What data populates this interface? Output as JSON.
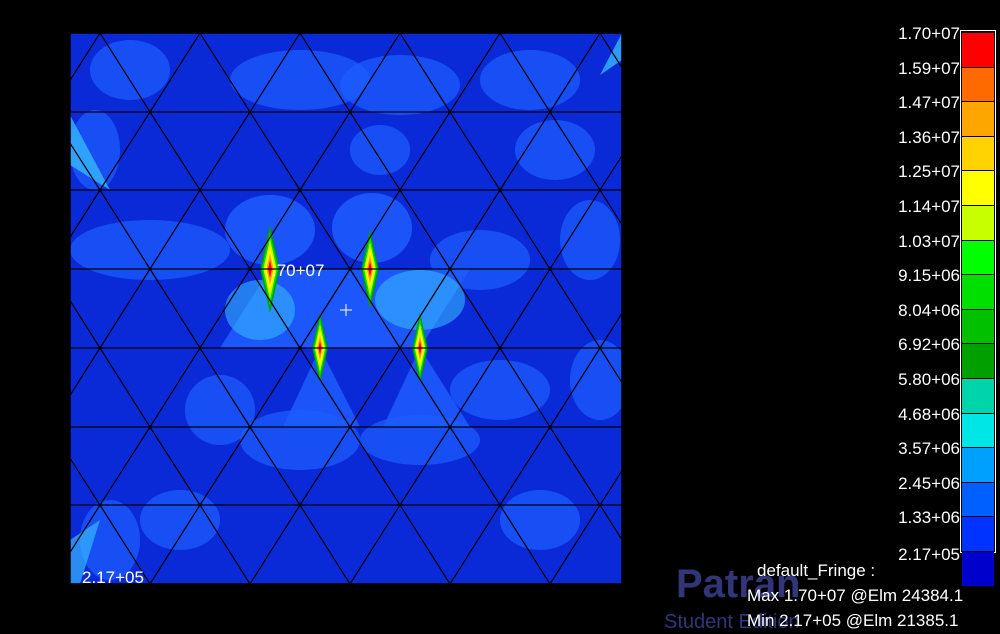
{
  "legend": {
    "levels": [
      "1.70+07",
      "1.59+07",
      "1.47+07",
      "1.36+07",
      "1.25+07",
      "1.14+07",
      "1.03+07",
      "9.15+06",
      "8.04+06",
      "6.92+06",
      "5.80+06",
      "4.68+06",
      "3.57+06",
      "2.45+06",
      "1.33+06",
      "2.17+05"
    ],
    "colors": [
      "#ff0000",
      "#ff6a00",
      "#ffa500",
      "#ffd200",
      "#ffff00",
      "#c8ff00",
      "#00ff00",
      "#00e000",
      "#00c000",
      "#00a000",
      "#00d4aa",
      "#00e5e5",
      "#00a0ff",
      "#0060ff",
      "#0033ff",
      "#0000cc"
    ]
  },
  "annotations": {
    "max_marker": ".70+07",
    "min_marker": "2.17+05"
  },
  "fringe_info": {
    "title": "default_Fringe :",
    "max_line": "Max 1.70+07 @Elm 24384.1",
    "min_line": "Min 2.17+05 @Elm 21385.1"
  },
  "watermark": {
    "brand": "Patran",
    "sub": "Student Edition"
  },
  "palette": {
    "background": "#000000",
    "mesh_base": "#0a2ad8",
    "mesh_light": "#1e5cff",
    "mesh_cyan": "#35b6ff",
    "mesh_lines": "#000000"
  }
}
